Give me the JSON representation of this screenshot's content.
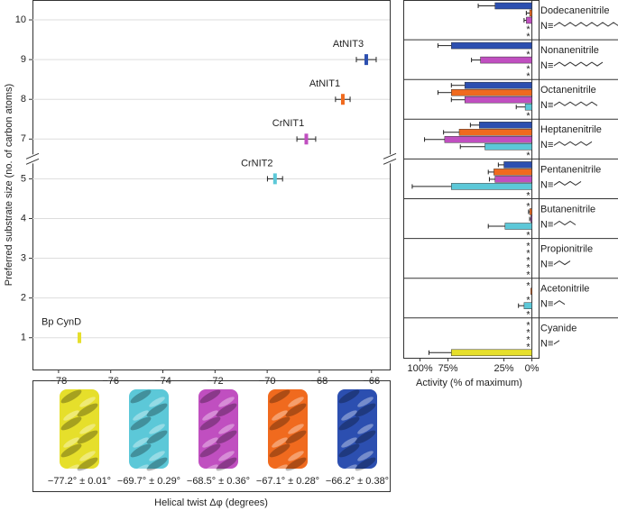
{
  "chart_data": [
    {
      "type": "scatter",
      "x": [
        -77.2,
        -69.7,
        -68.5,
        -67.1,
        -66.2
      ],
      "y": [
        1,
        5,
        7,
        8,
        9
      ],
      "xerr": [
        0.01,
        0.29,
        0.36,
        0.28,
        0.38
      ],
      "labels": [
        "Bp CynD",
        "CrNIT2",
        "CrNIT1",
        "AtNIT1",
        "AtNIT3"
      ],
      "colors": [
        "#e6df2b",
        "#5cc8d8",
        "#c04fc0",
        "#f06a1e",
        "#2c4fb0"
      ],
      "xlim": [
        -79,
        -65.3
      ],
      "xticks": [
        {
          "value": -78,
          "label": "−78"
        },
        {
          "value": -76,
          "label": "−76"
        },
        {
          "value": -74,
          "label": "−74"
        },
        {
          "value": -72,
          "label": "−72"
        },
        {
          "value": -70,
          "label": "−70"
        },
        {
          "value": -68,
          "label": "−68"
        },
        {
          "value": -66,
          "label": "−66"
        }
      ],
      "ylim": [
        0.2,
        10.5
      ],
      "yticks": [
        1,
        2,
        3,
        4,
        5,
        7,
        8,
        9,
        10
      ],
      "axis_break": [
        5.5,
        6.5
      ],
      "grid": "y",
      "ylabel": "Preferred substrate size (no. of carbon atoms)",
      "xlabel": "Helical twist Δφ (degrees)"
    },
    {
      "type": "barh",
      "categories": [
        "Dodecanenitrile",
        "Nonanenitrile",
        "Octanenitrile",
        "Heptanenitrile",
        "Pentanenitrile",
        "Butanenitrile",
        "Propionitrile",
        "Acetonitrile",
        "Cyanide"
      ],
      "formula_prefix": "N≡",
      "series": [
        {
          "color": "#2c4fb0",
          "values": [
            33,
            72,
            60,
            47,
            25,
            0,
            0,
            0,
            0
          ],
          "errors": [
            15,
            12,
            12,
            8,
            5,
            null,
            null,
            null,
            null
          ],
          "value_labels": [
            null,
            null,
            null,
            null,
            null,
            "*",
            "*",
            "*",
            "*"
          ]
        },
        {
          "color": "#f06a1e",
          "values": [
            2,
            0,
            72,
            65,
            34,
            2,
            0,
            1,
            0
          ],
          "errors": [
            3,
            null,
            12,
            14,
            5,
            1,
            null,
            null,
            null
          ],
          "value_labels": [
            null,
            "*",
            null,
            null,
            null,
            null,
            "*",
            null,
            "*"
          ]
        },
        {
          "color": "#c04fc0",
          "values": [
            5,
            46,
            60,
            78,
            33,
            1,
            0,
            0,
            0
          ],
          "errors": [
            2,
            8,
            12,
            18,
            5,
            1,
            null,
            null,
            null
          ],
          "value_labels": [
            null,
            null,
            null,
            null,
            null,
            null,
            "*",
            "*",
            "*"
          ]
        },
        {
          "color": "#5cc8d8",
          "values": [
            0,
            0,
            6,
            42,
            72,
            24,
            0,
            7,
            0
          ],
          "errors": [
            null,
            null,
            8,
            22,
            35,
            15,
            null,
            5,
            null
          ],
          "value_labels": [
            "*",
            "*",
            null,
            null,
            null,
            null,
            "*",
            null,
            "*"
          ]
        },
        {
          "color": "#e6df2b",
          "values": [
            0,
            0,
            0,
            0,
            0,
            0,
            0,
            0,
            72
          ],
          "errors": [
            null,
            null,
            null,
            null,
            null,
            null,
            null,
            null,
            20
          ],
          "value_labels": [
            "*",
            "*",
            "*",
            "*",
            "*",
            "*",
            "*",
            "*",
            null
          ]
        }
      ],
      "xlim": [
        115,
        -6
      ],
      "xticks": [
        {
          "value": 100,
          "label": "100%"
        },
        {
          "value": 75,
          "label": "75%"
        },
        {
          "value": 25,
          "label": "25%"
        },
        {
          "value": 0,
          "label": "0%"
        }
      ],
      "xlabel": "Activity (% of maximum)"
    }
  ],
  "density_panel": {
    "labels": [
      "−77.2° ± 0.01°",
      "−69.7° ± 0.29°",
      "−68.5° ± 0.36°",
      "−67.1° ± 0.28°",
      "−66.2° ± 0.38°"
    ]
  }
}
